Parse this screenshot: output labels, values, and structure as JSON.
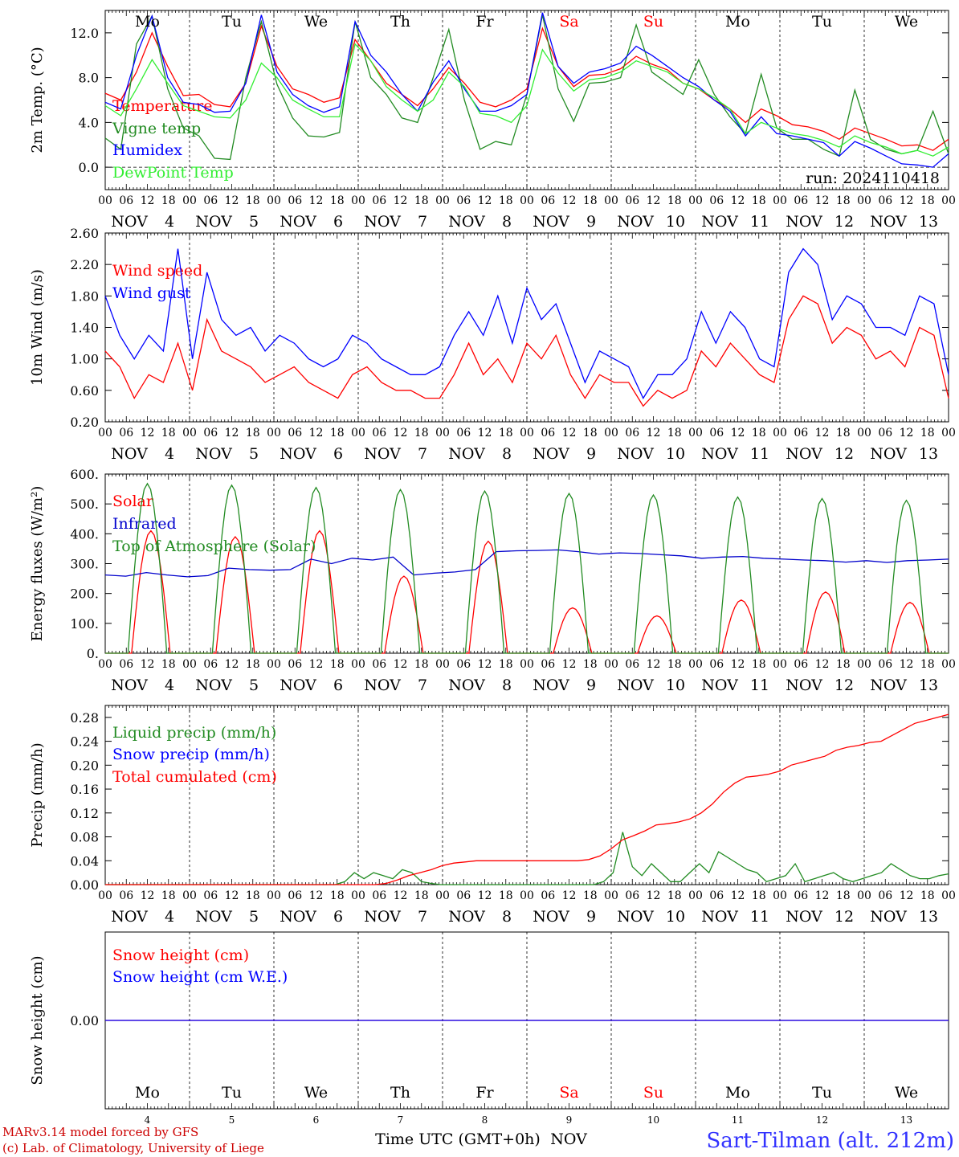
{
  "chart_data": [
    {
      "type": "line",
      "ylabel": "2m Temp. (°C)",
      "ylim": [
        -2,
        14
      ],
      "yticks": [
        "0.0",
        "4.0",
        "8.0",
        "12.0"
      ],
      "ytick_values": [
        0,
        4,
        8,
        12
      ],
      "zero_line": true,
      "run_label": "run: 2024110418",
      "legend_placement": "top-left",
      "series": [
        {
          "name": "Temperature",
          "color": "#ff0000",
          "values": [
            6.6,
            6.0,
            8.5,
            12.0,
            9.0,
            6.4,
            6.5,
            5.6,
            5.4,
            7.5,
            12.6,
            9.0,
            7.0,
            6.5,
            5.8,
            6.2,
            11.4,
            9.5,
            7.5,
            6.5,
            5.5,
            7.0,
            8.9,
            7.5,
            5.8,
            5.4,
            6.0,
            7.0,
            12.4,
            9.0,
            7.2,
            8.2,
            8.3,
            8.8,
            9.9,
            9.2,
            8.7,
            7.5,
            7.0,
            6.0,
            5.2,
            4.0,
            5.2,
            4.6,
            3.8,
            3.6,
            3.2,
            2.5,
            3.5,
            3.0,
            2.5,
            1.9,
            2.0,
            1.5,
            2.5
          ]
        },
        {
          "name": "Vigne temp",
          "color": "#228b22",
          "values": [
            2.6,
            1.6,
            11.0,
            13.5,
            7.0,
            3.5,
            2.8,
            0.8,
            0.7,
            8.0,
            13.0,
            7.4,
            4.4,
            2.8,
            2.7,
            3.1,
            13.0,
            8.0,
            6.5,
            4.4,
            4.0,
            8.0,
            12.3,
            6.0,
            1.6,
            2.3,
            2.0,
            6.5,
            13.6,
            7.0,
            4.1,
            7.5,
            7.6,
            8.0,
            12.7,
            8.5,
            7.5,
            6.5,
            9.6,
            6.5,
            4.5,
            3.0,
            8.3,
            3.5,
            2.5,
            2.5,
            1.6,
            1.0,
            6.9,
            2.5,
            1.6,
            1.2,
            1.5,
            5.0,
            1.2
          ]
        },
        {
          "name": "Humidex",
          "color": "#0000ff",
          "values": [
            5.8,
            5.2,
            10.0,
            13.5,
            8.0,
            5.8,
            5.6,
            4.9,
            5.0,
            7.5,
            13.6,
            8.5,
            6.5,
            5.5,
            4.9,
            5.4,
            13.0,
            10.0,
            8.5,
            6.5,
            5.0,
            7.6,
            9.5,
            7.0,
            5.0,
            5.0,
            5.5,
            6.5,
            13.8,
            9.0,
            7.5,
            8.5,
            8.8,
            9.3,
            10.8,
            10.0,
            9.0,
            8.0,
            7.2,
            6.0,
            5.0,
            2.8,
            4.5,
            3.0,
            2.8,
            2.5,
            2.2,
            1.0,
            2.3,
            1.7,
            1.0,
            0.3,
            0.2,
            0.0,
            1.2
          ]
        },
        {
          "name": "DewPoint Temp",
          "color": "#33ee33",
          "values": [
            5.5,
            4.6,
            7.0,
            9.6,
            7.5,
            5.5,
            5.0,
            4.5,
            4.4,
            6.0,
            9.3,
            8.0,
            6.0,
            5.2,
            4.5,
            4.5,
            11.0,
            9.5,
            7.2,
            6.0,
            5.0,
            6.0,
            8.5,
            7.2,
            4.8,
            4.6,
            4.0,
            5.5,
            10.5,
            8.4,
            6.8,
            7.8,
            8.0,
            8.5,
            9.5,
            9.0,
            8.5,
            7.5,
            7.0,
            6.2,
            5.2,
            3.0,
            4.0,
            3.5,
            3.0,
            2.8,
            2.4,
            1.8,
            2.8,
            2.2,
            1.8,
            1.2,
            1.5,
            1.0,
            1.8
          ]
        }
      ]
    },
    {
      "type": "line",
      "ylabel": "10m Wind (m/s)",
      "ylim": [
        0.2,
        2.6
      ],
      "yticks": [
        "0.20",
        "0.60",
        "1.00",
        "1.40",
        "1.80",
        "2.20",
        "2.60"
      ],
      "ytick_values": [
        0.2,
        0.6,
        1.0,
        1.4,
        1.8,
        2.2,
        2.6
      ],
      "legend_placement": "top-left",
      "series": [
        {
          "name": "Wind speed",
          "color": "#ff0000",
          "values": [
            1.1,
            0.9,
            0.5,
            0.8,
            0.7,
            1.2,
            0.6,
            1.5,
            1.1,
            1.0,
            0.9,
            0.7,
            0.8,
            0.9,
            0.7,
            0.6,
            0.5,
            0.8,
            0.9,
            0.7,
            0.6,
            0.6,
            0.5,
            0.5,
            0.8,
            1.2,
            0.8,
            1.0,
            0.7,
            1.2,
            1.0,
            1.3,
            0.8,
            0.5,
            0.8,
            0.7,
            0.7,
            0.4,
            0.6,
            0.5,
            0.6,
            1.1,
            0.9,
            1.2,
            1.0,
            0.8,
            0.7,
            1.5,
            1.8,
            1.7,
            1.2,
            1.4,
            1.3,
            1.0,
            1.1,
            0.9,
            1.4,
            1.3,
            0.5
          ]
        },
        {
          "name": "Wind gust",
          "color": "#0000ff",
          "values": [
            1.8,
            1.3,
            1.0,
            1.3,
            1.1,
            2.4,
            1.0,
            2.1,
            1.5,
            1.3,
            1.4,
            1.1,
            1.3,
            1.2,
            1.0,
            0.9,
            1.0,
            1.3,
            1.2,
            1.0,
            0.9,
            0.8,
            0.8,
            0.9,
            1.3,
            1.6,
            1.3,
            1.8,
            1.2,
            1.9,
            1.5,
            1.7,
            1.2,
            0.7,
            1.1,
            1.0,
            0.9,
            0.5,
            0.8,
            0.8,
            1.0,
            1.6,
            1.2,
            1.6,
            1.4,
            1.0,
            0.9,
            2.1,
            2.4,
            2.2,
            1.5,
            1.8,
            1.7,
            1.4,
            1.4,
            1.3,
            1.8,
            1.7,
            0.8
          ]
        }
      ]
    },
    {
      "type": "line",
      "ylabel": "Energy fluxes (W/m²)",
      "ylim": [
        0,
        600
      ],
      "yticks": [
        "0.",
        "100.",
        "200.",
        "300.",
        "400.",
        "500.",
        "600."
      ],
      "ytick_values": [
        0,
        100,
        200,
        300,
        400,
        500,
        600
      ],
      "legend_placement": "top-left",
      "series": [
        {
          "name": "Solar",
          "color": "#ff0000",
          "peaks": [
            410,
            390,
            410,
            258,
            375,
            152,
            125,
            178,
            205,
            170
          ],
          "peak_hour": 13
        },
        {
          "name": "Infrared",
          "color": "#0000cc",
          "values": [
            262,
            258,
            270,
            262,
            256,
            260,
            285,
            280,
            278,
            280,
            315,
            300,
            318,
            312,
            322,
            262,
            268,
            272,
            280,
            340,
            343,
            344,
            346,
            340,
            332,
            336,
            334,
            330,
            326,
            318,
            322,
            324,
            318,
            315,
            312,
            310,
            305,
            310,
            304,
            310,
            312,
            315
          ]
        },
        {
          "name": "Top of Atmosphere (Solar)",
          "color": "#228b22",
          "peaks": [
            568,
            563,
            555,
            548,
            543,
            535,
            530,
            523,
            518,
            512
          ],
          "peak_hour": 12
        }
      ]
    },
    {
      "type": "line",
      "ylabel": "Precip (mm/h)",
      "ylim": [
        0,
        0.3
      ],
      "yticks": [
        "0.00",
        "0.04",
        "0.08",
        "0.12",
        "0.16",
        "0.20",
        "0.24",
        "0.28"
      ],
      "ytick_values": [
        0,
        0.04,
        0.08,
        0.12,
        0.16,
        0.2,
        0.24,
        0.28
      ],
      "legend_placement": "top-left",
      "series": [
        {
          "name": "Liquid precip (mm/h)",
          "color": "#228b22",
          "values": [
            0,
            0,
            0,
            0,
            0,
            0,
            0,
            0,
            0,
            0,
            0,
            0,
            0,
            0,
            0,
            0,
            0,
            0,
            0,
            0,
            0,
            0,
            0,
            0,
            0,
            0.005,
            0.02,
            0.01,
            0.02,
            0.015,
            0.01,
            0.025,
            0.02,
            0.005,
            0.002,
            0,
            0,
            0,
            0,
            0,
            0,
            0,
            0,
            0,
            0,
            0,
            0,
            0,
            0,
            0,
            0,
            0,
            0.005,
            0.02,
            0.088,
            0.03,
            0.015,
            0.035,
            0.02,
            0.005,
            0.005,
            0.02,
            0.035,
            0.02,
            0.055,
            0.045,
            0.035,
            0.025,
            0.02,
            0.005,
            0.01,
            0.015,
            0.035,
            0.005,
            0.01,
            0.015,
            0.02,
            0.01,
            0.005,
            0.01,
            0.015,
            0.02,
            0.035,
            0.025,
            0.015,
            0.01,
            0.01,
            0.015,
            0.018
          ]
        },
        {
          "name": "Snow precip (mm/h)",
          "color": "#0000ff",
          "values": []
        },
        {
          "name": "Total cumulated (cm)",
          "color": "#ff0000",
          "values": [
            0,
            0,
            0,
            0,
            0,
            0,
            0,
            0,
            0,
            0,
            0,
            0,
            0,
            0,
            0,
            0,
            0,
            0,
            0,
            0,
            0,
            0,
            0,
            0,
            0,
            0.002,
            0.008,
            0.015,
            0.02,
            0.025,
            0.032,
            0.036,
            0.038,
            0.04,
            0.04,
            0.04,
            0.04,
            0.04,
            0.04,
            0.04,
            0.04,
            0.04,
            0.04,
            0.042,
            0.048,
            0.06,
            0.075,
            0.082,
            0.09,
            0.1,
            0.102,
            0.105,
            0.11,
            0.12,
            0.135,
            0.155,
            0.17,
            0.18,
            0.182,
            0.185,
            0.19,
            0.2,
            0.205,
            0.21,
            0.215,
            0.225,
            0.23,
            0.233,
            0.238,
            0.24,
            0.25,
            0.26,
            0.27,
            0.275,
            0.28,
            0.285
          ]
        }
      ]
    },
    {
      "type": "line",
      "ylabel": "Snow height (cm)",
      "ylim": [
        -1,
        1
      ],
      "yticks": [
        "0.00"
      ],
      "ytick_values": [
        0
      ],
      "legend_placement": "top-left",
      "series": [
        {
          "name": "Snow height (cm)",
          "color": "#ff0000",
          "values": [
            0,
            0
          ]
        },
        {
          "name": "Snow height (cm W.E.)",
          "color": "#0000ff",
          "values": [
            0,
            0
          ]
        }
      ]
    }
  ],
  "x_axis": {
    "days": 10,
    "hour_ticks": [
      "00",
      "06",
      "12",
      "18"
    ],
    "month": "NOV",
    "day_numbers": [
      "4",
      "5",
      "6",
      "7",
      "8",
      "9",
      "10",
      "11",
      "12",
      "13"
    ],
    "weekdays": [
      "Mo",
      "Tu",
      "We",
      "Th",
      "Fr",
      "Sa",
      "Su",
      "Mo",
      "Tu",
      "We"
    ],
    "weekend_days": [
      5,
      6
    ],
    "xlabel": "Time UTC (GMT+0h)"
  },
  "colors": {
    "weekday": "#000000",
    "weekend": "#ff0000",
    "station": "#3333ff",
    "credit": "#cc0000"
  },
  "footer": {
    "model": "MARv3.14 model forced by GFS",
    "credit": "(c) Lab. of Climatology, University of Liege",
    "station": "Sart-Tilman (alt. 212m)"
  }
}
